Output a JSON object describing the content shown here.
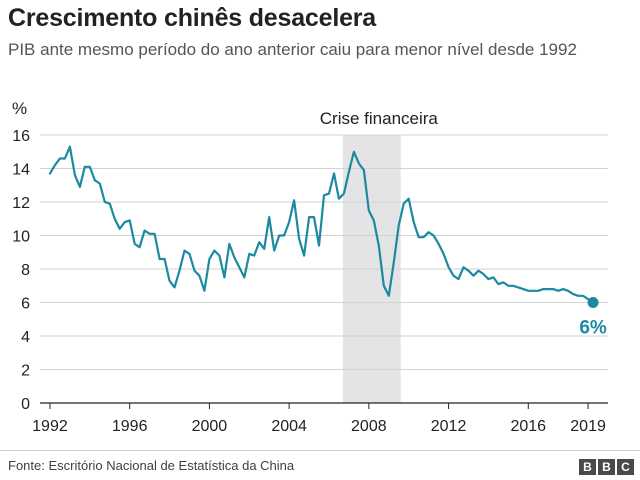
{
  "header": {
    "title": "Crescimento chinês desacelera",
    "subtitle": "PIB ante mesmo período do ano anterior caiu para menor nível desde 1992"
  },
  "footer": {
    "source": "Fonte: Escritório Nacional de Estatística da China",
    "logo_letters": [
      "B",
      "B",
      "C"
    ]
  },
  "colors": {
    "line": "#1b8aa0",
    "shade": "#e4e4e6",
    "grid": "#d2d2d2",
    "axis": "#222222"
  },
  "chart_data": {
    "type": "line",
    "title": "Crescimento chinês desacelera",
    "subtitle": "PIB ante mesmo período do ano anterior caiu para menor nível desde 1992",
    "ylabel": "%",
    "xlabel": "",
    "ylim": [
      0,
      16
    ],
    "yticks": [
      0,
      2,
      4,
      6,
      8,
      10,
      12,
      14,
      16
    ],
    "xlim": [
      1991.5,
      2020.0
    ],
    "xticks": [
      1992,
      1996,
      2000,
      2004,
      2008,
      2012,
      2016,
      2019
    ],
    "grid": "horizontal",
    "shaded_region": {
      "label": "Crise financeira",
      "x": [
        2006.7,
        2009.6
      ]
    },
    "end_label": "6%",
    "series": [
      {
        "name": "",
        "x": [
          1992.0,
          1992.25,
          1992.5,
          1992.75,
          1993.0,
          1993.25,
          1993.5,
          1993.75,
          1994.0,
          1994.25,
          1994.5,
          1994.75,
          1995.0,
          1995.25,
          1995.5,
          1995.75,
          1996.0,
          1996.25,
          1996.5,
          1996.75,
          1997.0,
          1997.25,
          1997.5,
          1997.75,
          1998.0,
          1998.25,
          1998.5,
          1998.75,
          1999.0,
          1999.25,
          1999.5,
          1999.75,
          2000.0,
          2000.25,
          2000.5,
          2000.75,
          2001.0,
          2001.25,
          2001.5,
          2001.75,
          2002.0,
          2002.25,
          2002.5,
          2002.75,
          2003.0,
          2003.25,
          2003.5,
          2003.75,
          2004.0,
          2004.25,
          2004.5,
          2004.75,
          2005.0,
          2005.25,
          2005.5,
          2005.75,
          2006.0,
          2006.25,
          2006.5,
          2006.75,
          2007.0,
          2007.25,
          2007.5,
          2007.75,
          2008.0,
          2008.25,
          2008.5,
          2008.75,
          2009.0,
          2009.25,
          2009.5,
          2009.75,
          2010.0,
          2010.25,
          2010.5,
          2010.75,
          2011.0,
          2011.25,
          2011.5,
          2011.75,
          2012.0,
          2012.25,
          2012.5,
          2012.75,
          2013.0,
          2013.25,
          2013.5,
          2013.75,
          2014.0,
          2014.25,
          2014.5,
          2014.75,
          2015.0,
          2015.25,
          2015.5,
          2015.75,
          2016.0,
          2016.25,
          2016.5,
          2016.75,
          2017.0,
          2017.25,
          2017.5,
          2017.75,
          2018.0,
          2018.25,
          2018.5,
          2018.75,
          2019.25
        ],
        "values": [
          13.7,
          14.2,
          14.6,
          14.6,
          15.3,
          13.6,
          12.9,
          14.1,
          14.1,
          13.3,
          13.1,
          12.0,
          11.9,
          11.0,
          10.4,
          10.8,
          10.9,
          9.5,
          9.3,
          10.3,
          10.1,
          10.1,
          8.6,
          8.6,
          7.3,
          6.9,
          7.9,
          9.1,
          8.9,
          7.9,
          7.6,
          6.7,
          8.6,
          9.1,
          8.8,
          7.5,
          9.5,
          8.7,
          8.1,
          7.5,
          8.9,
          8.8,
          9.6,
          9.2,
          11.1,
          9.1,
          10.0,
          10.0,
          10.8,
          12.1,
          9.8,
          8.8,
          11.1,
          11.1,
          9.4,
          12.4,
          12.5,
          13.7,
          12.2,
          12.5,
          13.8,
          15.0,
          14.3,
          13.9,
          11.5,
          10.9,
          9.4,
          7.0,
          6.4,
          8.4,
          10.6,
          11.9,
          12.2,
          10.8,
          9.9,
          9.9,
          10.2,
          10.0,
          9.5,
          8.9,
          8.1,
          7.6,
          7.4,
          8.1,
          7.9,
          7.6,
          7.9,
          7.7,
          7.4,
          7.5,
          7.1,
          7.2,
          7.0,
          7.0,
          6.9,
          6.8,
          6.7,
          6.7,
          6.7,
          6.8,
          6.8,
          6.8,
          6.7,
          6.8,
          6.7,
          6.5,
          6.4,
          6.4,
          6.0
        ]
      }
    ]
  }
}
